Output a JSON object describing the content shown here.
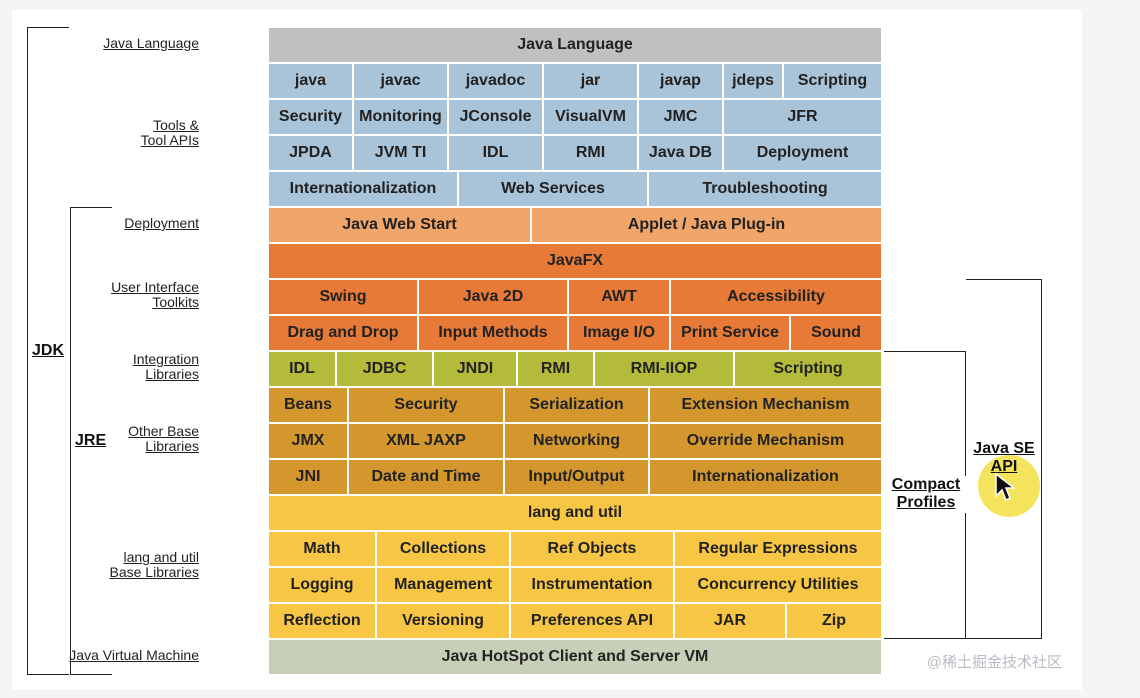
{
  "colors": {
    "language": "#c0c0c0",
    "tools": "#a9c3d8",
    "deployment": "#f0a56a",
    "ui": "#e67a36",
    "integration": "#b4bb3a",
    "other_base": "#d4972e",
    "lang_util": "#f6c644",
    "jvm": "#c7cfb8",
    "highlight": "#f3e04a"
  },
  "labels": {
    "java_language": "Java Language",
    "tools": "Tools &\nTool APIs",
    "deployment": "Deployment",
    "ui": "User Interface\nToolkits",
    "integration": "Integration\nLibraries",
    "other_base": "Other Base\nLibraries",
    "lang_util": "lang and util\nBase Libraries",
    "jvm": "Java Virtual Machine"
  },
  "brackets": {
    "jdk": "JDK",
    "jre": "JRE",
    "compact": "Compact\nProfiles",
    "javase": "Java SE\nAPI"
  },
  "rows": {
    "language": [
      "Java Language"
    ],
    "tools1": [
      "java",
      "javac",
      "javadoc",
      "jar",
      "javap",
      "jdeps",
      "Scripting"
    ],
    "tools2": [
      "Security",
      "Monitoring",
      "JConsole",
      "VisualVM",
      "JMC",
      "JFR"
    ],
    "tools3": [
      "JPDA",
      "JVM TI",
      "IDL",
      "RMI",
      "Java DB",
      "Deployment"
    ],
    "tools4": [
      "Internationalization",
      "Web Services",
      "Troubleshooting"
    ],
    "deployment": [
      "Java Web Start",
      "Applet / Java Plug-in"
    ],
    "javafx": [
      "JavaFX"
    ],
    "ui1": [
      "Swing",
      "Java 2D",
      "AWT",
      "Accessibility"
    ],
    "ui2": [
      "Drag and Drop",
      "Input Methods",
      "Image I/O",
      "Print Service",
      "Sound"
    ],
    "integration": [
      "IDL",
      "JDBC",
      "JNDI",
      "RMI",
      "RMI-IIOP",
      "Scripting"
    ],
    "base1": [
      "Beans",
      "Security",
      "Serialization",
      "Extension Mechanism"
    ],
    "base2": [
      "JMX",
      "XML JAXP",
      "Networking",
      "Override Mechanism"
    ],
    "base3": [
      "JNI",
      "Date and Time",
      "Input/Output",
      "Internationalization"
    ],
    "langutil": [
      "lang and util"
    ],
    "lu1": [
      "Math",
      "Collections",
      "Ref Objects",
      "Regular Expressions"
    ],
    "lu2": [
      "Logging",
      "Management",
      "Instrumentation",
      "Concurrency Utilities"
    ],
    "lu3": [
      "Reflection",
      "Versioning",
      "Preferences API",
      "JAR",
      "Zip"
    ],
    "jvm": [
      "Java HotSpot Client and Server VM"
    ]
  },
  "icons": {
    "cursor": "arrow-cursor-icon"
  },
  "watermark": "@稀土掘金技术社区"
}
